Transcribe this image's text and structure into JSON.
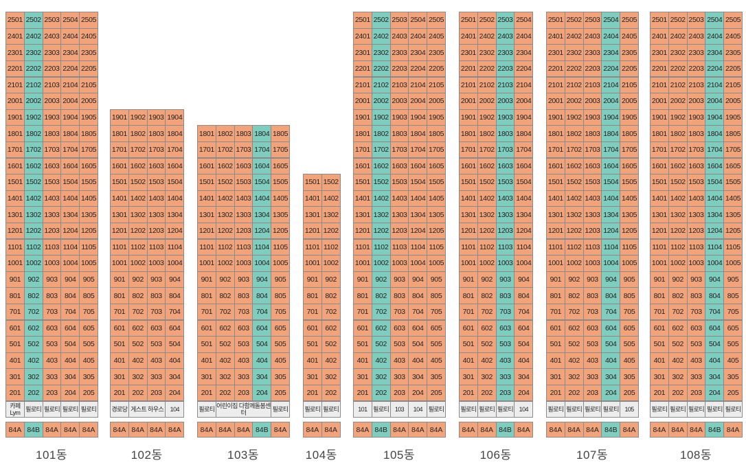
{
  "colors": {
    "unit_a": "#f2a37a",
    "unit_b": "#7fcdbf",
    "facility": "#ededed"
  },
  "buildings": [
    {
      "name": "101동",
      "top_floor": 25,
      "cols": 5,
      "teal_col": 2,
      "b_col": 2,
      "ground": [
        "카페 Lym",
        "필로티",
        "필로티",
        "필로티",
        "필로티"
      ],
      "ground_teal": [],
      "second_floor": [
        "201",
        "202",
        "203",
        "204",
        "205"
      ]
    },
    {
      "name": "102동",
      "top_floor": 19,
      "cols": 4,
      "teal_col": 0,
      "b_col": 0,
      "ground": [
        "경로당",
        "게스트 하우스",
        "104"
      ],
      "ground_spans": [
        1,
        2,
        1
      ],
      "ground_teal": [],
      "second_floor": [
        "201",
        "202",
        "203",
        "204"
      ]
    },
    {
      "name": "103동",
      "top_floor": 18,
      "cols": 5,
      "teal_col": 4,
      "b_col": 4,
      "ground": [
        "필로티",
        "어린이집 다함께돌봄센터",
        "필로티"
      ],
      "ground_spans": [
        1,
        3,
        1
      ],
      "ground_teal": [],
      "second_floor": [
        "201",
        "202",
        "203",
        "204",
        "205"
      ]
    },
    {
      "name": "104동",
      "top_floor": 15,
      "cols": 2,
      "teal_col": 0,
      "b_col": 0,
      "ground": [
        "필로티",
        "필로티"
      ],
      "ground_teal": [],
      "second_floor": [
        "201",
        "202"
      ]
    },
    {
      "name": "105동",
      "top_floor": 25,
      "cols": 5,
      "teal_col": 2,
      "b_col": 2,
      "ground": [
        "101",
        "필로티",
        "103",
        "104",
        "필로티"
      ],
      "ground_teal": [
        2
      ],
      "second_floor": [
        "201",
        "202",
        "203",
        "204",
        "205"
      ]
    },
    {
      "name": "106동",
      "top_floor": 25,
      "cols": 4,
      "teal_col": 3,
      "b_col": 3,
      "ground": [
        "필로티",
        "필로티",
        "필로티",
        "104"
      ],
      "ground_teal": [],
      "second_floor": [
        "201",
        "202",
        "203",
        "204"
      ]
    },
    {
      "name": "107동",
      "top_floor": 25,
      "cols": 5,
      "teal_col": 4,
      "b_col": 4,
      "ground": [
        "필로티",
        "필로티",
        "필로티",
        "필로티",
        "105"
      ],
      "ground_teal": [],
      "second_floor": [
        "201",
        "202",
        "203",
        "204",
        "205"
      ]
    },
    {
      "name": "108동",
      "top_floor": 25,
      "cols": 5,
      "teal_col": 4,
      "b_col": 4,
      "ground": [
        "필로티",
        "필로티",
        "필로티",
        "필로티",
        "필로티"
      ],
      "ground_teal": [],
      "second_floor": [
        "201",
        "202",
        "203",
        "204",
        "205"
      ]
    }
  ],
  "type_labels": {
    "a": "84A",
    "b": "84B"
  }
}
